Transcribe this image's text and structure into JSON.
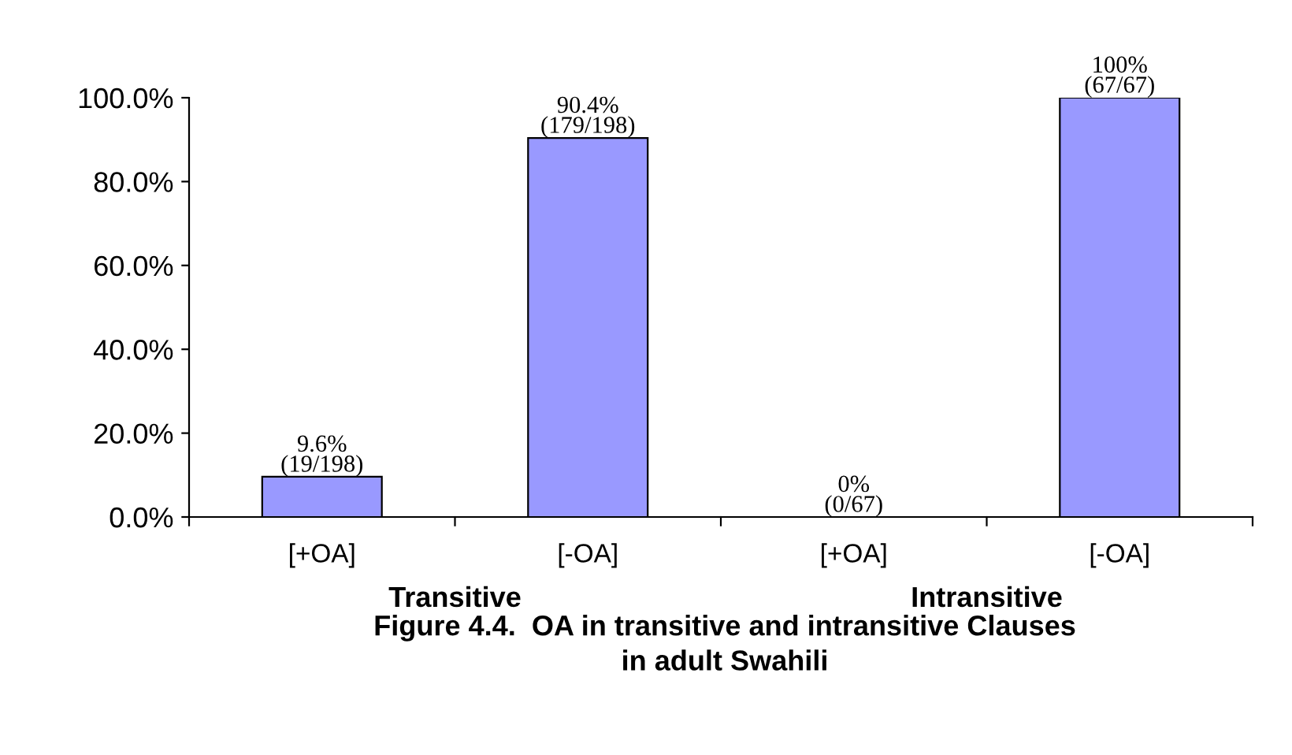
{
  "chart_data": {
    "type": "bar",
    "title": "Figure 4.4.  OA in transitive and intransitive Clauses\nin adult Swahili",
    "categories": [
      "[+OA]",
      "[-OA]",
      "[+OA]",
      "[-OA]"
    ],
    "values": [
      9.6,
      90.4,
      0,
      100
    ],
    "value_labels": [
      "9.6%\n(19/198)",
      "90.4%\n(179/198)",
      "0%\n(0/67)",
      "100%\n(67/67)"
    ],
    "color": "#9999ff",
    "ylim": [
      0,
      100
    ],
    "yticks": [
      {
        "value": 0,
        "label": "0.0%"
      },
      {
        "value": 20,
        "label": "20.0%"
      },
      {
        "value": 40,
        "label": "40.0%"
      },
      {
        "value": 60,
        "label": "60.0%"
      },
      {
        "value": 80,
        "label": "80.0%"
      },
      {
        "value": 100,
        "label": "100.0%"
      }
    ],
    "annotations": [
      "Transitive",
      "Intransitive"
    ],
    "grid": false,
    "legend": false
  }
}
